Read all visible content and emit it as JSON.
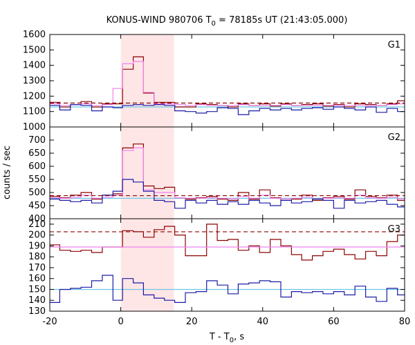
{
  "chart_data": {
    "type": "line",
    "title": "KONUS-WIND 980706 T₀ = 78185s UT (21:43:05.000)",
    "title_parts": {
      "prefix": "KONUS-WIND 980706 T",
      "subscript": "0",
      "suffix": " = 78185s UT (21:43:05.000)"
    },
    "xlabel_parts": {
      "prefix": "T - T",
      "subscript": "0",
      "suffix": ", s"
    },
    "ylabel": "counts / sec",
    "xlim": [
      -20,
      80
    ],
    "xticks": [
      "-20",
      "0",
      "20",
      "40",
      "60",
      "80"
    ],
    "highlight_interval": [
      0,
      15
    ],
    "colors": {
      "red": "#8b0000",
      "pink": "#ee82ee",
      "blue": "#1a1aa6",
      "cyan": "#6ec6e6",
      "highlight": "#ffe6e6"
    },
    "panels": [
      {
        "label": "G1",
        "ylim": [
          1000,
          1600
        ],
        "yticks": [
          "1000",
          "1100",
          "1200",
          "1300",
          "1400",
          "1500",
          "1600"
        ],
        "background_level": 1155,
        "fit_level": 1130,
        "series": [
          {
            "color": "red",
            "x": [
              -20,
              -17.2,
              -14.2,
              -11.2,
              -8.2,
              -5.2,
              -2.2,
              0.5,
              3.5,
              6.4,
              9.4,
              12.3,
              15.2,
              18.2,
              21.2,
              24.2,
              27.2,
              30.2,
              33.1,
              36.1,
              39.1,
              42.1,
              45.1,
              48.1,
              51,
              54,
              57,
              60,
              63,
              66,
              69,
              72,
              75,
              78,
              80
            ],
            "y": [
              1160,
              1130,
              1145,
              1165,
              1130,
              1150,
              1150,
              1375,
              1455,
              1220,
              1160,
              1160,
              1130,
              1130,
              1150,
              1145,
              1140,
              1130,
              1150,
              1140,
              1150,
              1135,
              1150,
              1140,
              1145,
              1150,
              1135,
              1145,
              1130,
              1150,
              1145,
              1140,
              1150,
              1170,
              1170
            ]
          },
          {
            "color": "pink",
            "x": [
              -20,
              -17.2,
              -14.2,
              -11.2,
              -8.2,
              -5.2,
              -2.2,
              0.5,
              3.5,
              6.4,
              9.4,
              12.3,
              15.2,
              18.2,
              21.2,
              24.2,
              27.2,
              30.2,
              33.1,
              36.1,
              39.1,
              42.1,
              45.1,
              48.1,
              51,
              54,
              57,
              60,
              63,
              66,
              69,
              72,
              75,
              78,
              80
            ],
            "y": [
              1150,
              1140,
              1145,
              1150,
              1140,
              1145,
              1250,
              1410,
              1425,
              1225,
              1150,
              1150,
              1145,
              1140,
              1145,
              1140,
              1140,
              1140,
              1145,
              1140,
              1140,
              1140,
              1145,
              1140,
              1140,
              1140,
              1140,
              1140,
              1140,
              1140,
              1140,
              1140,
              1145,
              1150,
              1150
            ]
          },
          {
            "color": "blue",
            "x": [
              -20,
              -17.2,
              -14.2,
              -11.2,
              -8.2,
              -5.2,
              -2.2,
              0.5,
              3.5,
              6.4,
              9.4,
              12.3,
              15.2,
              18.2,
              21.2,
              24.2,
              27.2,
              30.2,
              33.1,
              36.1,
              39.1,
              42.1,
              45.1,
              48.1,
              51,
              54,
              57,
              60,
              63,
              66,
              69,
              72,
              75,
              78,
              80
            ],
            "y": [
              1140,
              1110,
              1145,
              1140,
              1105,
              1130,
              1125,
              1140,
              1145,
              1140,
              1145,
              1140,
              1105,
              1100,
              1090,
              1100,
              1125,
              1120,
              1080,
              1105,
              1120,
              1110,
              1120,
              1110,
              1120,
              1125,
              1115,
              1130,
              1120,
              1110,
              1130,
              1095,
              1120,
              1100,
              1120
            ]
          }
        ]
      },
      {
        "label": "G2",
        "ylim": [
          400,
          750
        ],
        "yticks": [
          "400",
          "450",
          "500",
          "550",
          "600",
          "650",
          "700"
        ],
        "background_level": 488,
        "fit_level": 478,
        "series": [
          {
            "color": "red",
            "x": [
              -20,
              -17.2,
              -14.2,
              -11.2,
              -8.2,
              -5.2,
              -2.2,
              0.5,
              3.5,
              6.4,
              9.4,
              12.3,
              15.2,
              18.2,
              21.2,
              24.2,
              27.2,
              30.2,
              33.1,
              36.1,
              39.1,
              42.1,
              45.1,
              48.1,
              51,
              54,
              57,
              60,
              63,
              66,
              69,
              72,
              75,
              78,
              80
            ],
            "y": [
              485,
              480,
              490,
              500,
              475,
              490,
              495,
              670,
              685,
              525,
              515,
              520,
              480,
              475,
              480,
              485,
              475,
              470,
              500,
              475,
              510,
              480,
              470,
              475,
              490,
              470,
              480,
              485,
              475,
              510,
              485,
              480,
              490,
              470,
              490
            ]
          },
          {
            "color": "pink",
            "x": [
              -20,
              -17.2,
              -14.2,
              -11.2,
              -8.2,
              -5.2,
              -2.2,
              0.5,
              3.5,
              6.4,
              9.4,
              12.3,
              15.2,
              18.2,
              21.2,
              24.2,
              27.2,
              30.2,
              33.1,
              36.1,
              39.1,
              42.1,
              45.1,
              48.1,
              51,
              54,
              57,
              60,
              63,
              66,
              69,
              72,
              75,
              78,
              80
            ],
            "y": [
              480,
              478,
              482,
              490,
              478,
              482,
              490,
              660,
              670,
              510,
              500,
              500,
              480,
              478,
              478,
              480,
              478,
              476,
              485,
              478,
              490,
              478,
              476,
              478,
              482,
              476,
              478,
              480,
              478,
              490,
              480,
              478,
              482,
              476,
              482
            ]
          },
          {
            "color": "blue",
            "x": [
              -20,
              -17.2,
              -14.2,
              -11.2,
              -8.2,
              -5.2,
              -2.2,
              0.5,
              3.5,
              6.4,
              9.4,
              12.3,
              15.2,
              18.2,
              21.2,
              24.2,
              27.2,
              30.2,
              33.1,
              36.1,
              39.1,
              42.1,
              45.1,
              48.1,
              51,
              54,
              57,
              60,
              63,
              66,
              69,
              72,
              75,
              78,
              80
            ],
            "y": [
              475,
              470,
              465,
              470,
              460,
              490,
              505,
              550,
              540,
              505,
              470,
              465,
              440,
              470,
              460,
              470,
              455,
              465,
              455,
              470,
              460,
              450,
              470,
              460,
              465,
              475,
              470,
              440,
              470,
              460,
              465,
              470,
              455,
              445,
              460
            ]
          }
        ]
      },
      {
        "label": "G3",
        "ylim": [
          130,
          215
        ],
        "yticks": [
          "130",
          "140",
          "150",
          "160",
          "170",
          "180",
          "190",
          "200",
          "210"
        ],
        "background_level": 203,
        "fit_level": 189,
        "secondary_fit_level": 150,
        "series": [
          {
            "color": "red",
            "x": [
              -20,
              -17.2,
              -14.2,
              -11.2,
              -8.2,
              -5.2,
              -2.2,
              0.5,
              3.5,
              6.4,
              9.4,
              12.3,
              15.2,
              18.2,
              21.2,
              24.2,
              27.2,
              30.2,
              33.1,
              36.1,
              39.1,
              42.1,
              45.1,
              48.1,
              51,
              54,
              57,
              60,
              63,
              66,
              69,
              72,
              75,
              78,
              80
            ],
            "y": [
              191,
              186,
              185,
              186,
              184,
              189,
              189,
              204,
              203,
              198,
              205,
              208,
              200,
              181,
              181,
              210,
              195,
              196,
              186,
              190,
              184,
              196,
              190,
              182,
              177,
              181,
              185,
              187,
              182,
              178,
              185,
              181,
              194,
              200,
              195
            ]
          },
          {
            "color": "pink",
            "x": [
              -20,
              80
            ],
            "y": [
              189,
              189
            ]
          },
          {
            "color": "blue",
            "x": [
              -20,
              -17.2,
              -14.2,
              -11.2,
              -8.2,
              -5.2,
              -2.2,
              0.5,
              3.5,
              6.4,
              9.4,
              12.3,
              15.2,
              18.2,
              21.2,
              24.2,
              27.2,
              30.2,
              33.1,
              36.1,
              39.1,
              42.1,
              45.1,
              48.1,
              51,
              54,
              57,
              60,
              63,
              66,
              69,
              72,
              75,
              78,
              80
            ],
            "y": [
              138,
              150,
              151,
              152,
              158,
              163,
              140,
              160,
              156,
              145,
              142,
              140,
              138,
              147,
              148,
              158,
              154,
              146,
              155,
              156,
              158,
              157,
              143,
              148,
              147,
              148,
              146,
              148,
              145,
              153,
              143,
              139,
              151,
              145,
              140
            ]
          }
        ]
      }
    ]
  }
}
